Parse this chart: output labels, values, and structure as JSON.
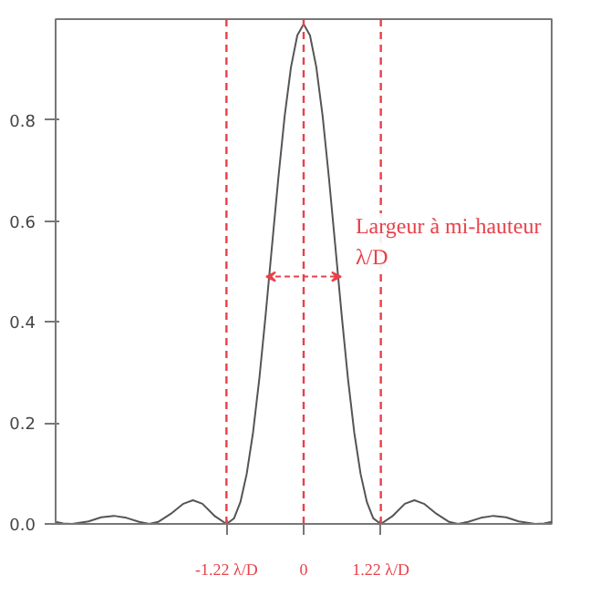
{
  "chart_data": {
    "type": "line",
    "x": [
      -3.92,
      -3.8,
      -3.66,
      -3.4,
      -3.2,
      -3.0,
      -2.8,
      -2.6,
      -2.44,
      -2.3,
      -2.1,
      -1.9,
      -1.75,
      -1.6,
      -1.4,
      -1.22,
      -1.1,
      -1.0,
      -0.9,
      -0.8,
      -0.7,
      -0.6,
      -0.5,
      -0.4,
      -0.3,
      -0.2,
      -0.1,
      0,
      0.1,
      0.2,
      0.3,
      0.4,
      0.5,
      0.6,
      0.7,
      0.8,
      0.9,
      1.0,
      1.1,
      1.22,
      1.4,
      1.6,
      1.75,
      1.9,
      2.1,
      2.3,
      2.44,
      2.6,
      2.8,
      3.0,
      3.2,
      3.4,
      3.66,
      3.8,
      3.92
    ],
    "series": [
      {
        "color": "#555555",
        "values": [
          0.004,
          0.001,
          0,
          0.005,
          0.013,
          0.016,
          0.012,
          0.004,
          0,
          0.004,
          0.02,
          0.04,
          0.047,
          0.04,
          0.015,
          0,
          0.011,
          0.043,
          0.099,
          0.181,
          0.288,
          0.415,
          0.551,
          0.685,
          0.808,
          0.905,
          0.968,
          0.99,
          0.968,
          0.905,
          0.808,
          0.685,
          0.551,
          0.415,
          0.288,
          0.181,
          0.099,
          0.043,
          0.011,
          0,
          0.015,
          0.04,
          0.047,
          0.04,
          0.02,
          0.004,
          0,
          0.004,
          0.012,
          0.016,
          0.013,
          0.005,
          0,
          0.001,
          0.004
        ]
      }
    ],
    "xlim": [
      -3.92,
      3.92
    ],
    "ylim": [
      0,
      1.0
    ],
    "xticks": [
      {
        "value": -1.22,
        "label": "-1.22 λ/D"
      },
      {
        "value": 0,
        "label": "0"
      },
      {
        "value": 1.22,
        "label": "1.22 λ/D"
      }
    ],
    "yticks": [
      {
        "value": 0,
        "label": "0.0"
      },
      {
        "value": 0.2,
        "label": "0.2"
      },
      {
        "value": 0.4,
        "label": "0.4"
      },
      {
        "value": 0.6,
        "label": "0.6"
      },
      {
        "value": 0.8,
        "label": "0.8"
      }
    ],
    "ref_lines": [
      {
        "axis": "x",
        "value": -1.22,
        "color": "#e8414a",
        "line_style": "dashed"
      },
      {
        "axis": "x",
        "value": 0,
        "color": "#e8414a",
        "line_style": "dashed"
      },
      {
        "axis": "x",
        "value": 1.22,
        "color": "#e8414a",
        "line_style": "dashed"
      }
    ],
    "annotations": [
      {
        "text": "Largeur à mi-hauteur\nλ/D",
        "x": 0.59,
        "y": 0.49
      }
    ],
    "grid": false
  }
}
